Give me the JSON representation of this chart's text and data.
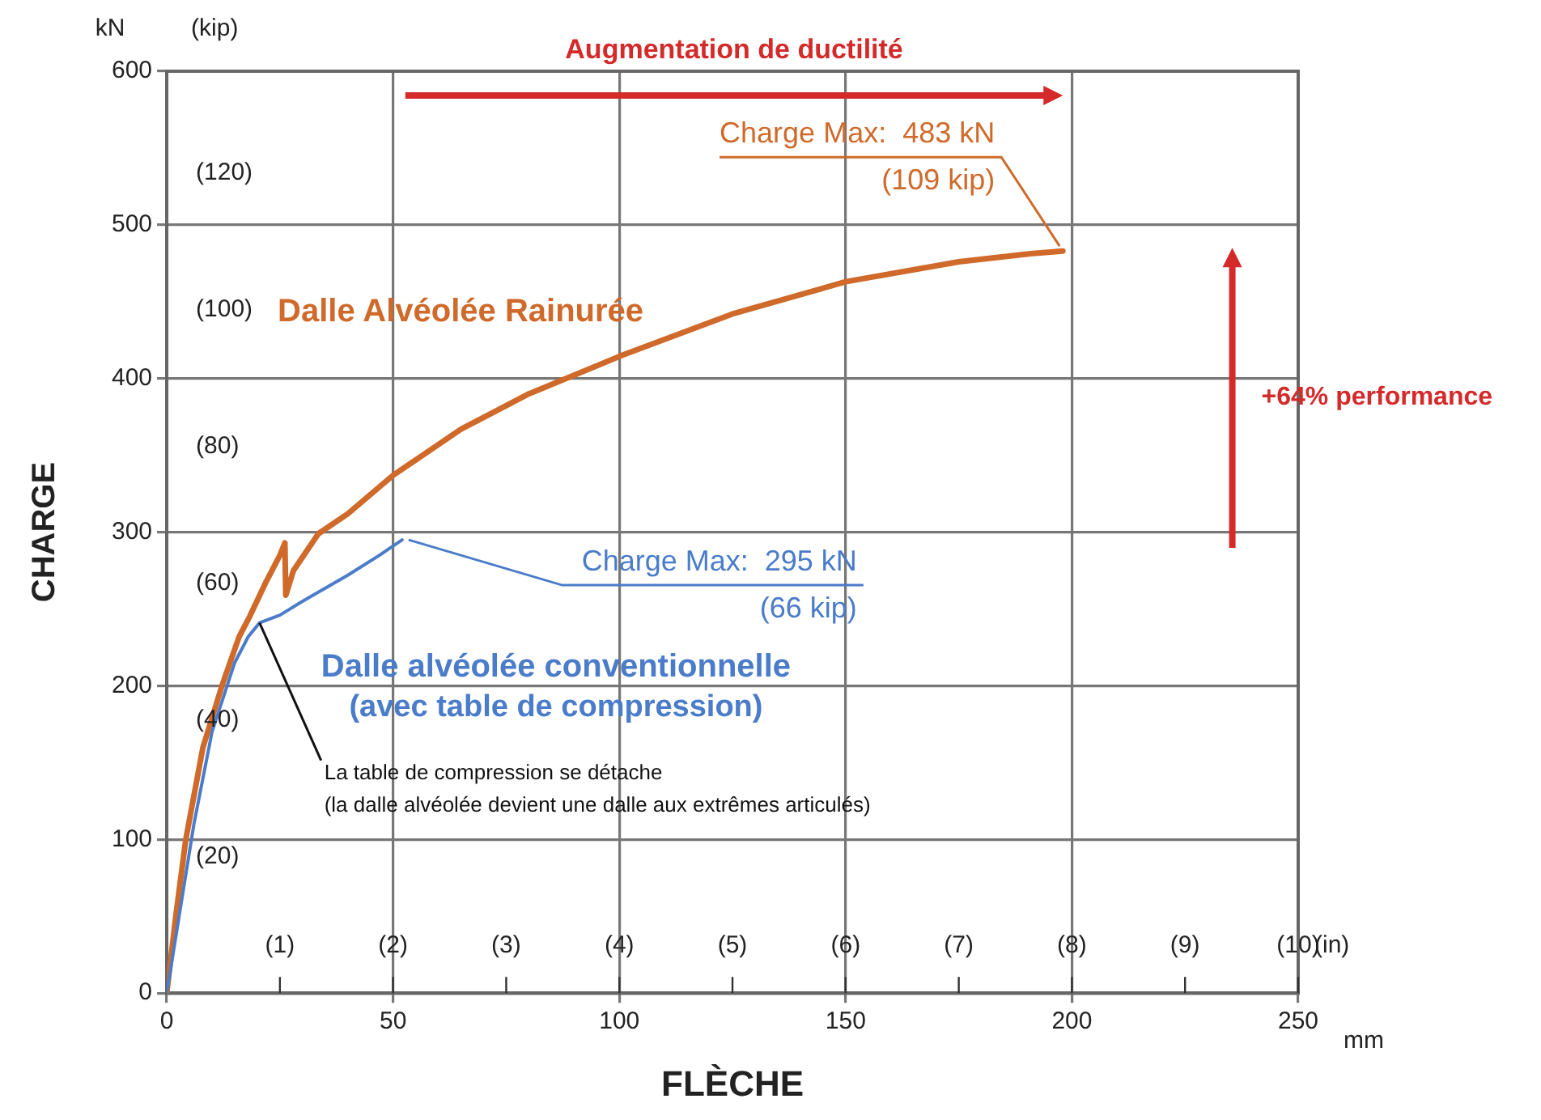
{
  "chart_data": {
    "type": "line",
    "xlabel": "FLÈCHE",
    "ylabel": "CHARGE",
    "y2label": "(kip)",
    "x2label": "(in)",
    "xlim": [
      0,
      250
    ],
    "xticks": [
      0,
      50,
      100,
      150,
      200,
      250
    ],
    "ylim": [
      0,
      600
    ],
    "yticks": [
      0,
      100,
      200,
      300,
      400,
      500,
      600
    ],
    "y2lim": [
      0,
      134.9
    ],
    "y2ticks": [
      {
        "value": 20,
        "label": "(20)"
      },
      {
        "value": 40,
        "label": "(40)"
      },
      {
        "value": 60,
        "label": "(60)"
      },
      {
        "value": 80,
        "label": "(80)"
      },
      {
        "value": 100,
        "label": "(100)"
      },
      {
        "value": 120,
        "label": "(120)"
      }
    ],
    "x2lim": [
      0,
      10
    ],
    "x2ticks": [
      {
        "value": 1,
        "label": "(1)"
      },
      {
        "value": 2,
        "label": "(2)"
      },
      {
        "value": 3,
        "label": "(3)"
      },
      {
        "value": 4,
        "label": "(4)"
      },
      {
        "value": 5,
        "label": "(5)"
      },
      {
        "value": 6,
        "label": "(6)"
      },
      {
        "value": 7,
        "label": "(7)"
      },
      {
        "value": 8,
        "label": "(8)"
      },
      {
        "value": 9,
        "label": "(9)"
      },
      {
        "value": 10,
        "label": "(10)"
      }
    ],
    "grid": true,
    "legend": false,
    "marker": "none",
    "line_style": "solid",
    "series": [
      {
        "name": "Dalle Alvéolée Rainurée",
        "color": "#cf6a2a",
        "x": [
          0,
          2,
          4.2,
          8,
          12.3,
          16,
          18.3,
          22,
          25,
          26.1,
          26.3,
          28,
          33.5,
          40,
          50,
          65,
          80,
          100.5,
          125,
          150,
          175,
          190,
          198
        ],
        "values": [
          0,
          50,
          100,
          160,
          201,
          232,
          245,
          268,
          285,
          293,
          259,
          275,
          299,
          312,
          337,
          367,
          390,
          415,
          442,
          463,
          476,
          481,
          483
        ]
      },
      {
        "name": "Dalle alvéolée conventionnelle\n(avec table de compression)",
        "color": "#4a7cc9",
        "x": [
          0,
          3,
          6,
          10,
          15,
          18,
          20.5,
          25,
          30,
          40,
          47,
          52
        ],
        "values": [
          0,
          55,
          110,
          170,
          215,
          232,
          241,
          246,
          255,
          272,
          285,
          295
        ]
      }
    ],
    "annotations": [
      "kN",
      "mm",
      "Augmentation de ductilité",
      "+64% performance",
      {
        "text": "Charge Max:  483 kN\n(109 kip)",
        "x": 198,
        "y": 483
      },
      {
        "text": "Charge Max:  295 kN\n(66 kip)",
        "x": 52,
        "y": 295
      },
      {
        "text": "La table de compression se détache\n(la dalle alvéolée devient une dalle aux extrêmes articulés)",
        "x": 20.5,
        "y": 241
      }
    ]
  }
}
